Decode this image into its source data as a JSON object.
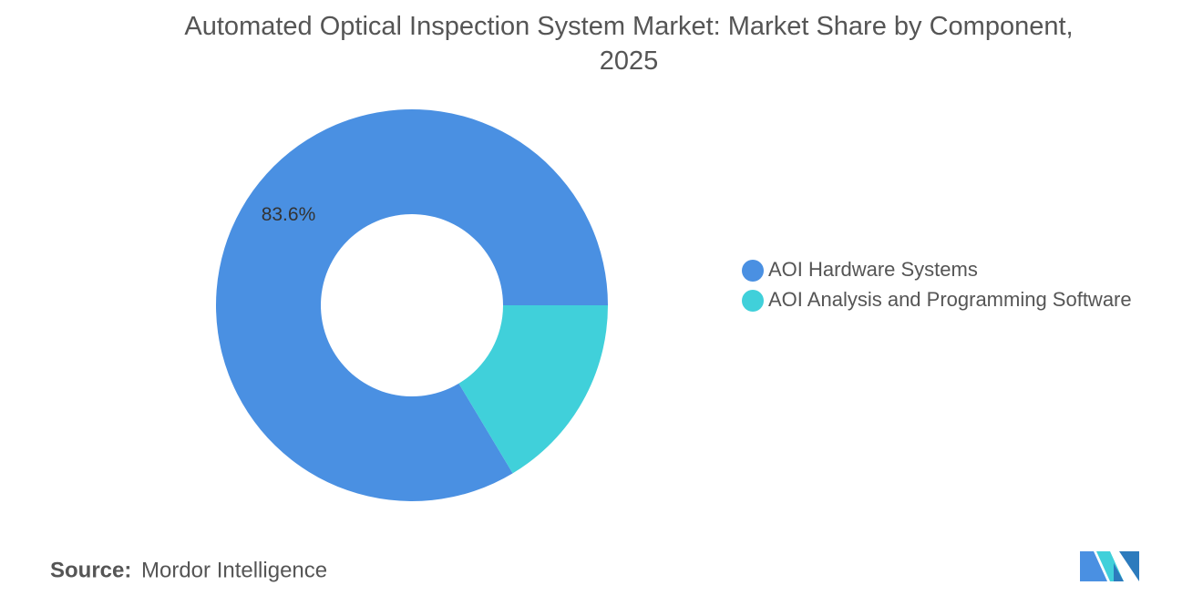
{
  "chart_data": {
    "type": "donut",
    "title": "Automated Optical Inspection System Market: Market Share by Component, 2025",
    "categories": [
      "AOI Hardware Systems",
      "AOI Analysis and Programming Software"
    ],
    "values": [
      83.6,
      16.4
    ],
    "value_labels": [
      "83.6%",
      null
    ],
    "colors": [
      "#4a90e2",
      "#40d0da"
    ],
    "legend": "right"
  },
  "source": {
    "label": "Source:",
    "text": "Mordor Intelligence"
  }
}
